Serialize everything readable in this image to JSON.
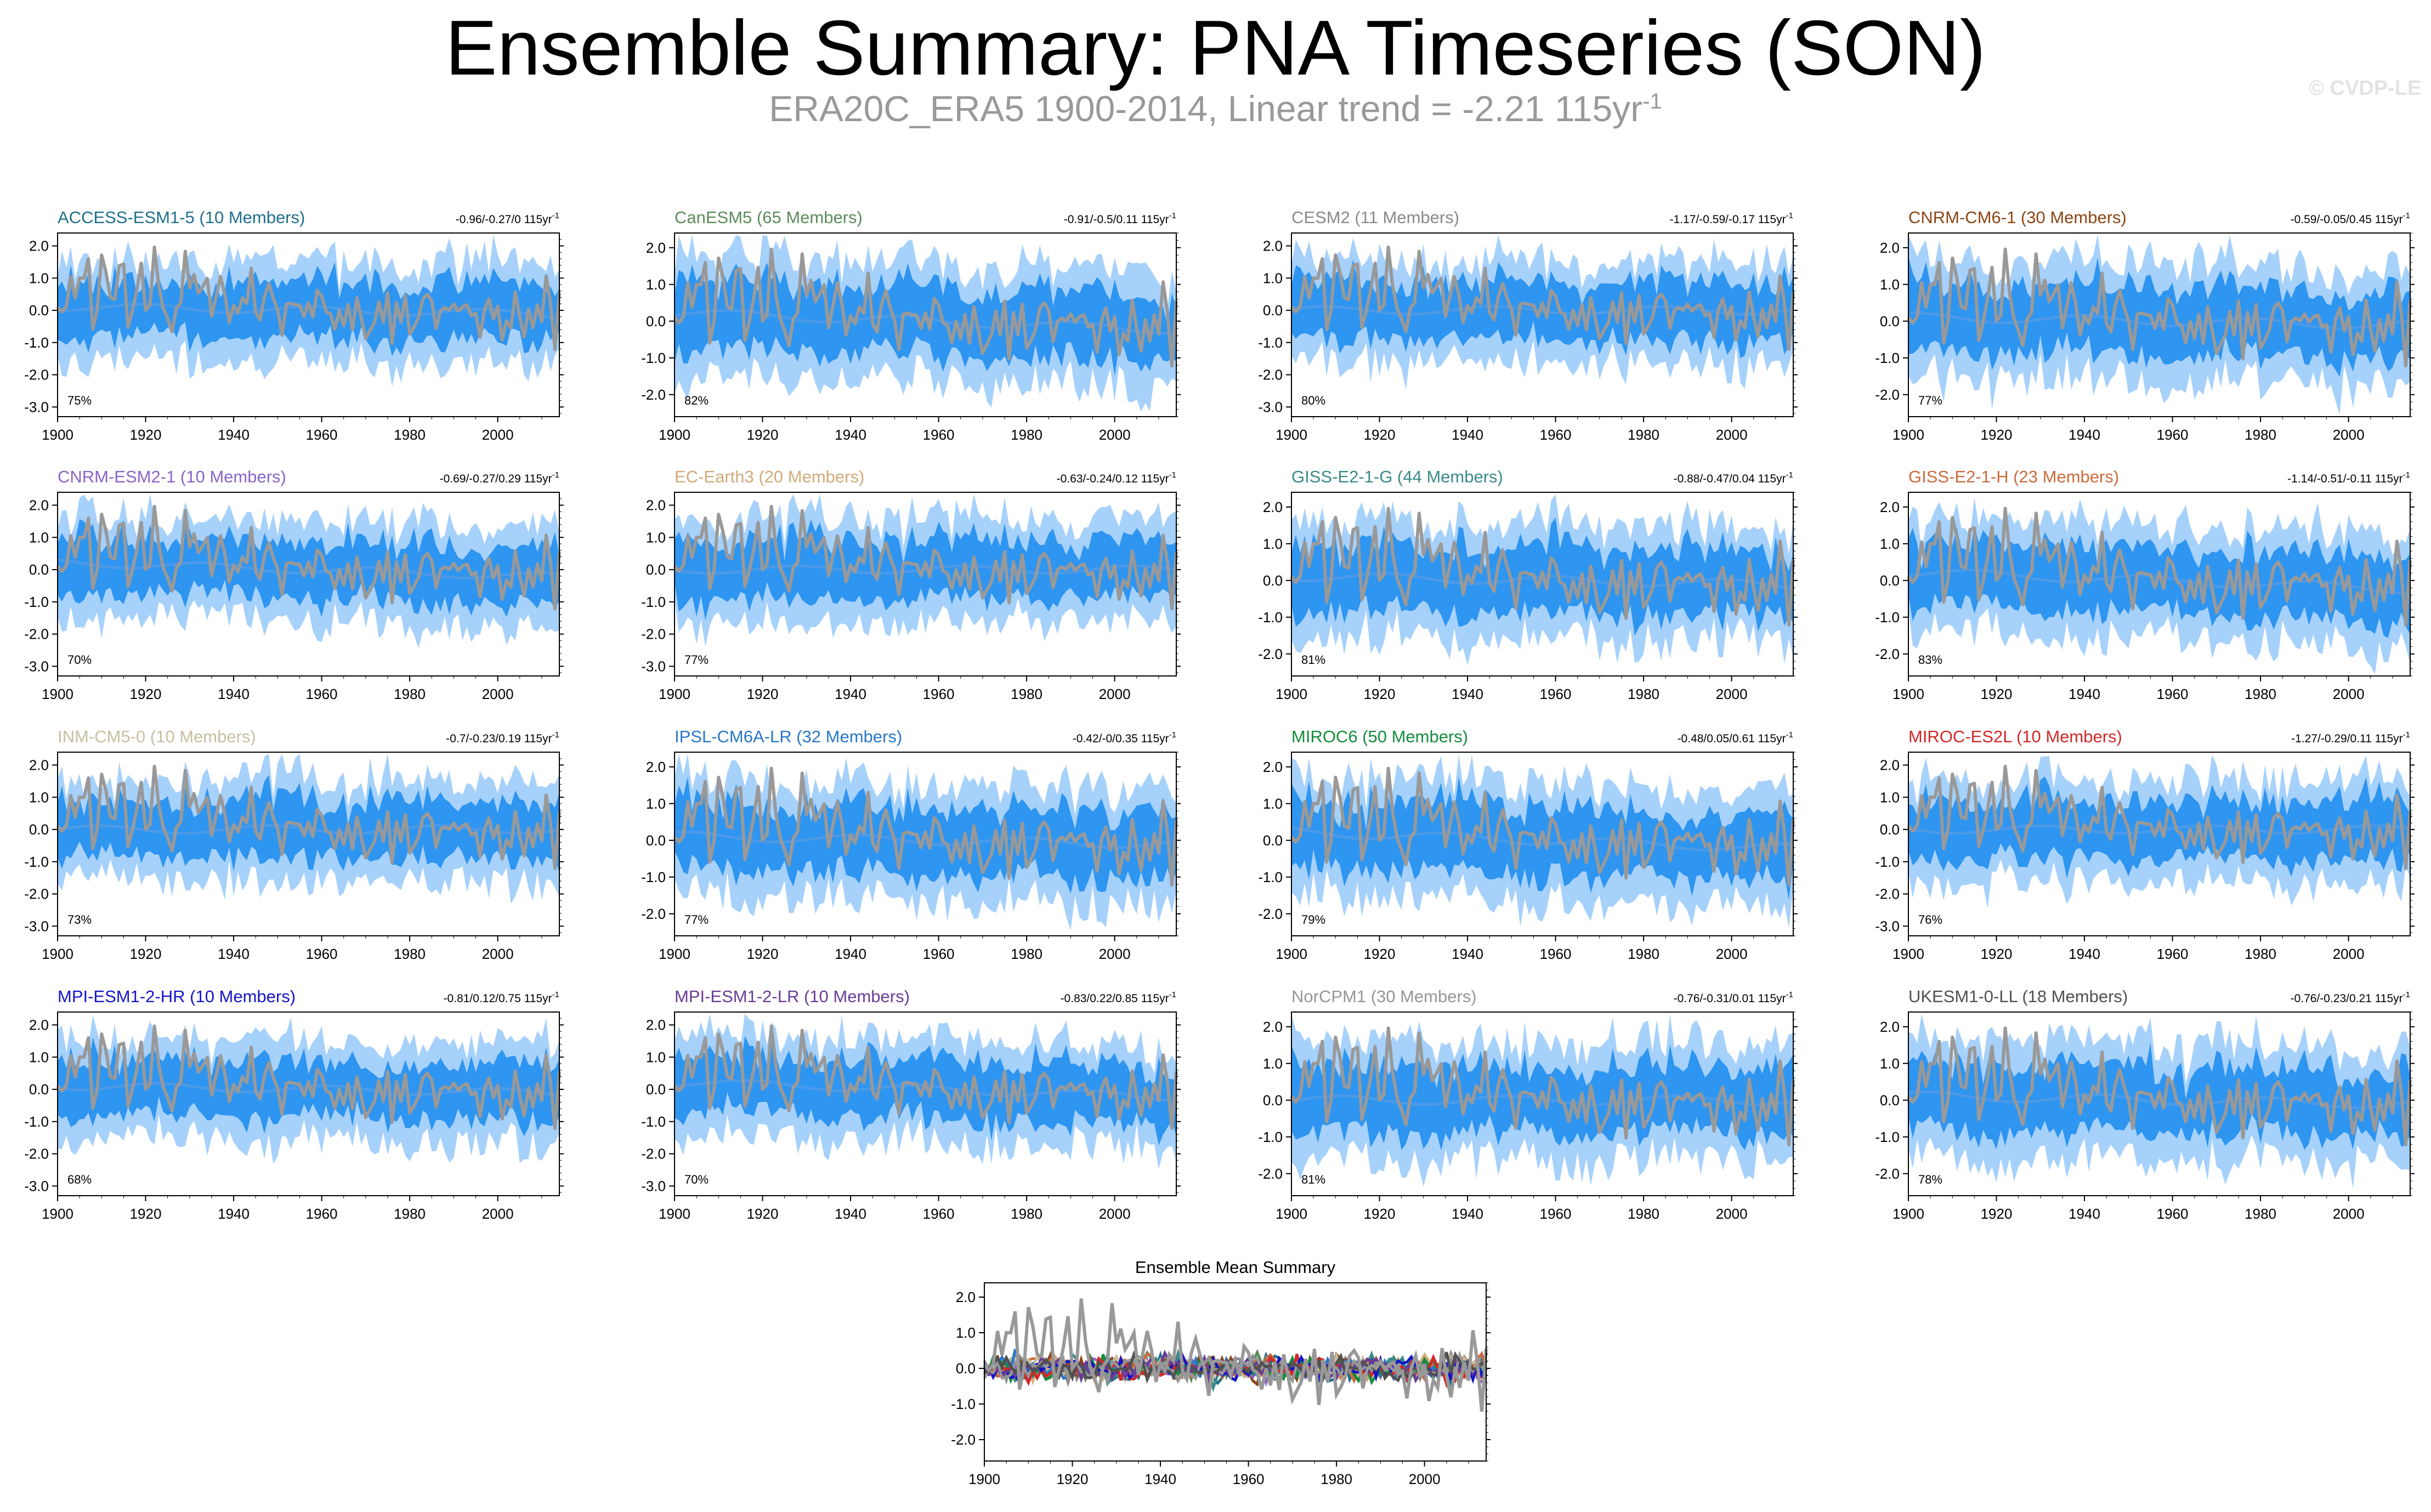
{
  "page": {
    "title": "Ensemble Summary: PNA Timeseries (SON)",
    "subtitle_main": "ERA20C_ERA5 1900-2014, Linear trend = -2.21 115yr",
    "subtitle_sup": "-1",
    "watermark": "© CVDP-LE"
  },
  "colors": {
    "band_outer": "#a6d1fb",
    "band_inner": "#2e95f0",
    "mean_line": "#4b9ae8",
    "obs_line": "#999999",
    "axis": "#000000"
  },
  "chart_data": [
    {
      "type": "line",
      "title": "ACCESS-ESM1-5 (10 Members)",
      "title_color": "#1f6f8b",
      "trend": "-0.96/-0.27/0",
      "trend_unit": "115yr",
      "trend_sup": "-1",
      "percent": "75%",
      "ylim": [
        -3.3,
        2.4
      ],
      "yticks": [
        "2.0",
        "1.0",
        "0.0",
        "-1.0",
        "-2.0",
        "-3.0"
      ],
      "ytick_values": [
        2,
        1,
        0,
        -1,
        -2,
        -3
      ],
      "xlim": [
        1900,
        2014
      ],
      "xticks": [
        "1900",
        "1920",
        "1940",
        "1960",
        "1980",
        "2000"
      ],
      "xtick_values": [
        1900,
        1920,
        1940,
        1960,
        1980,
        2000
      ],
      "seed": 1
    },
    {
      "type": "line",
      "title": "CanESM5 (65 Members)",
      "title_color": "#5b8c5a",
      "trend": "-0.91/-0.5/0.11",
      "trend_unit": "115yr",
      "trend_sup": "-1",
      "percent": "82%",
      "ylim": [
        -2.6,
        2.4
      ],
      "yticks": [
        "2.0",
        "1.0",
        "0.0",
        "-1.0",
        "-2.0"
      ],
      "ytick_values": [
        2,
        1,
        0,
        -1,
        -2
      ],
      "xlim": [
        1900,
        2014
      ],
      "xticks": [
        "1900",
        "1920",
        "1940",
        "1960",
        "1980",
        "2000"
      ],
      "xtick_values": [
        1900,
        1920,
        1940,
        1960,
        1980,
        2000
      ],
      "seed": 2
    },
    {
      "type": "line",
      "title": "CESM2 (11 Members)",
      "title_color": "#8a8a8a",
      "trend": "-1.17/-0.59/-0.17",
      "trend_unit": "115yr",
      "trend_sup": "-1",
      "percent": "80%",
      "ylim": [
        -3.3,
        2.4
      ],
      "yticks": [
        "2.0",
        "1.0",
        "0.0",
        "-1.0",
        "-2.0",
        "-3.0"
      ],
      "ytick_values": [
        2,
        1,
        0,
        -1,
        -2,
        -3
      ],
      "xlim": [
        1900,
        2014
      ],
      "xticks": [
        "1900",
        "1920",
        "1940",
        "1960",
        "1980",
        "2000"
      ],
      "xtick_values": [
        1900,
        1920,
        1940,
        1960,
        1980,
        2000
      ],
      "seed": 3
    },
    {
      "type": "line",
      "title": "CNRM-CM6-1 (30 Members)",
      "title_color": "#8b4513",
      "trend": "-0.59/-0.05/0.45",
      "trend_unit": "115yr",
      "trend_sup": "-1",
      "percent": "77%",
      "ylim": [
        -2.6,
        2.4
      ],
      "yticks": [
        "2.0",
        "1.0",
        "0.0",
        "-1.0",
        "-2.0"
      ],
      "ytick_values": [
        2,
        1,
        0,
        -1,
        -2
      ],
      "xlim": [
        1900,
        2014
      ],
      "xticks": [
        "1900",
        "1920",
        "1940",
        "1960",
        "1980",
        "2000"
      ],
      "xtick_values": [
        1900,
        1920,
        1940,
        1960,
        1980,
        2000
      ],
      "seed": 4
    },
    {
      "type": "line",
      "title": "CNRM-ESM2-1 (10 Members)",
      "title_color": "#8a64c8",
      "trend": "-0.69/-0.27/0.29",
      "trend_unit": "115yr",
      "trend_sup": "-1",
      "percent": "70%",
      "ylim": [
        -3.3,
        2.4
      ],
      "yticks": [
        "2.0",
        "1.0",
        "0.0",
        "-1.0",
        "-2.0",
        "-3.0"
      ],
      "ytick_values": [
        2,
        1,
        0,
        -1,
        -2,
        -3
      ],
      "xlim": [
        1900,
        2014
      ],
      "xticks": [
        "1900",
        "1920",
        "1940",
        "1960",
        "1980",
        "2000"
      ],
      "xtick_values": [
        1900,
        1920,
        1940,
        1960,
        1980,
        2000
      ],
      "seed": 5
    },
    {
      "type": "line",
      "title": "EC-Earth3 (20 Members)",
      "title_color": "#d2aa78",
      "trend": "-0.63/-0.24/0.12",
      "trend_unit": "115yr",
      "trend_sup": "-1",
      "percent": "77%",
      "ylim": [
        -3.3,
        2.4
      ],
      "yticks": [
        "2.0",
        "1.0",
        "0.0",
        "-1.0",
        "-2.0",
        "-3.0"
      ],
      "ytick_values": [
        2,
        1,
        0,
        -1,
        -2,
        -3
      ],
      "xlim": [
        1900,
        2014
      ],
      "xticks": [
        "1900",
        "1920",
        "1940",
        "1960",
        "1980",
        "2000"
      ],
      "xtick_values": [
        1900,
        1920,
        1940,
        1960,
        1980,
        2000
      ],
      "seed": 6
    },
    {
      "type": "line",
      "title": "GISS-E2-1-G (44 Members)",
      "title_color": "#3a8a8a",
      "trend": "-0.88/-0.47/0.04",
      "trend_unit": "115yr",
      "trend_sup": "-1",
      "percent": "81%",
      "ylim": [
        -2.6,
        2.4
      ],
      "yticks": [
        "2.0",
        "1.0",
        "0.0",
        "-1.0",
        "-2.0"
      ],
      "ytick_values": [
        2,
        1,
        0,
        -1,
        -2
      ],
      "xlim": [
        1900,
        2014
      ],
      "xticks": [
        "1900",
        "1920",
        "1940",
        "1960",
        "1980",
        "2000"
      ],
      "xtick_values": [
        1900,
        1920,
        1940,
        1960,
        1980,
        2000
      ],
      "seed": 7
    },
    {
      "type": "line",
      "title": "GISS-E2-1-H (23 Members)",
      "title_color": "#cd6a3c",
      "trend": "-1.14/-0.51/-0.11",
      "trend_unit": "115yr",
      "trend_sup": "-1",
      "percent": "83%",
      "ylim": [
        -2.6,
        2.4
      ],
      "yticks": [
        "2.0",
        "1.0",
        "0.0",
        "-1.0",
        "-2.0"
      ],
      "ytick_values": [
        2,
        1,
        0,
        -1,
        -2
      ],
      "xlim": [
        1900,
        2014
      ],
      "xticks": [
        "1900",
        "1920",
        "1940",
        "1960",
        "1980",
        "2000"
      ],
      "xtick_values": [
        1900,
        1920,
        1940,
        1960,
        1980,
        2000
      ],
      "seed": 8
    },
    {
      "type": "line",
      "title": "INM-CM5-0 (10 Members)",
      "title_color": "#c8bea0",
      "trend": "-0.7/-0.23/0.19",
      "trend_unit": "115yr",
      "trend_sup": "-1",
      "percent": "73%",
      "ylim": [
        -3.3,
        2.4
      ],
      "yticks": [
        "2.0",
        "1.0",
        "0.0",
        "-1.0",
        "-2.0",
        "-3.0"
      ],
      "ytick_values": [
        2,
        1,
        0,
        -1,
        -2,
        -3
      ],
      "xlim": [
        1900,
        2014
      ],
      "xticks": [
        "1900",
        "1920",
        "1940",
        "1960",
        "1980",
        "2000"
      ],
      "xtick_values": [
        1900,
        1920,
        1940,
        1960,
        1980,
        2000
      ],
      "seed": 9
    },
    {
      "type": "line",
      "title": "IPSL-CM6A-LR (32 Members)",
      "title_color": "#2878c8",
      "trend": "-0.42/-0/0.35",
      "trend_unit": "115yr",
      "trend_sup": "-1",
      "percent": "77%",
      "ylim": [
        -2.6,
        2.4
      ],
      "yticks": [
        "2.0",
        "1.0",
        "0.0",
        "-1.0",
        "-2.0"
      ],
      "ytick_values": [
        2,
        1,
        0,
        -1,
        -2
      ],
      "xlim": [
        1900,
        2014
      ],
      "xticks": [
        "1900",
        "1920",
        "1940",
        "1960",
        "1980",
        "2000"
      ],
      "xtick_values": [
        1900,
        1920,
        1940,
        1960,
        1980,
        2000
      ],
      "seed": 10
    },
    {
      "type": "line",
      "title": "MIROC6 (50 Members)",
      "title_color": "#148c3c",
      "trend": "-0.48/0.05/0.61",
      "trend_unit": "115yr",
      "trend_sup": "-1",
      "percent": "79%",
      "ylim": [
        -2.6,
        2.4
      ],
      "yticks": [
        "2.0",
        "1.0",
        "0.0",
        "-1.0",
        "-2.0"
      ],
      "ytick_values": [
        2,
        1,
        0,
        -1,
        -2
      ],
      "xlim": [
        1900,
        2014
      ],
      "xticks": [
        "1900",
        "1920",
        "1940",
        "1960",
        "1980",
        "2000"
      ],
      "xtick_values": [
        1900,
        1920,
        1940,
        1960,
        1980,
        2000
      ],
      "seed": 11
    },
    {
      "type": "line",
      "title": "MIROC-ES2L (10 Members)",
      "title_color": "#d22828",
      "trend": "-1.27/-0.29/0.11",
      "trend_unit": "115yr",
      "trend_sup": "-1",
      "percent": "76%",
      "ylim": [
        -3.3,
        2.4
      ],
      "yticks": [
        "2.0",
        "1.0",
        "0.0",
        "-1.0",
        "-2.0",
        "-3.0"
      ],
      "ytick_values": [
        2,
        1,
        0,
        -1,
        -2,
        -3
      ],
      "xlim": [
        1900,
        2014
      ],
      "xticks": [
        "1900",
        "1920",
        "1940",
        "1960",
        "1980",
        "2000"
      ],
      "xtick_values": [
        1900,
        1920,
        1940,
        1960,
        1980,
        2000
      ],
      "seed": 12
    },
    {
      "type": "line",
      "title": "MPI-ESM1-2-HR (10 Members)",
      "title_color": "#1414c8",
      "trend": "-0.81/0.12/0.75",
      "trend_unit": "115yr",
      "trend_sup": "-1",
      "percent": "68%",
      "ylim": [
        -3.3,
        2.4
      ],
      "yticks": [
        "2.0",
        "1.0",
        "0.0",
        "-1.0",
        "-2.0",
        "-3.0"
      ],
      "ytick_values": [
        2,
        1,
        0,
        -1,
        -2,
        -3
      ],
      "xlim": [
        1900,
        2014
      ],
      "xticks": [
        "1900",
        "1920",
        "1940",
        "1960",
        "1980",
        "2000"
      ],
      "xtick_values": [
        1900,
        1920,
        1940,
        1960,
        1980,
        2000
      ],
      "seed": 13
    },
    {
      "type": "line",
      "title": "MPI-ESM1-2-LR (10 Members)",
      "title_color": "#6a3c96",
      "trend": "-0.83/0.22/0.85",
      "trend_unit": "115yr",
      "trend_sup": "-1",
      "percent": "70%",
      "ylim": [
        -3.3,
        2.4
      ],
      "yticks": [
        "2.0",
        "1.0",
        "0.0",
        "-1.0",
        "-2.0",
        "-3.0"
      ],
      "ytick_values": [
        2,
        1,
        0,
        -1,
        -2,
        -3
      ],
      "xlim": [
        1900,
        2014
      ],
      "xticks": [
        "1900",
        "1920",
        "1940",
        "1960",
        "1980",
        "2000"
      ],
      "xtick_values": [
        1900,
        1920,
        1940,
        1960,
        1980,
        2000
      ],
      "seed": 14
    },
    {
      "type": "line",
      "title": "NorCPM1 (30 Members)",
      "title_color": "#969696",
      "trend": "-0.76/-0.31/0.01",
      "trend_unit": "115yr",
      "trend_sup": "-1",
      "percent": "81%",
      "ylim": [
        -2.6,
        2.4
      ],
      "yticks": [
        "2.0",
        "1.0",
        "0.0",
        "-1.0",
        "-2.0"
      ],
      "ytick_values": [
        2,
        1,
        0,
        -1,
        -2
      ],
      "xlim": [
        1900,
        2014
      ],
      "xticks": [
        "1900",
        "1920",
        "1940",
        "1960",
        "1980",
        "2000"
      ],
      "xtick_values": [
        1900,
        1920,
        1940,
        1960,
        1980,
        2000
      ],
      "seed": 15
    },
    {
      "type": "line",
      "title": "UKESM1-0-LL (18 Members)",
      "title_color": "#505050",
      "trend": "-0.76/-0.23/0.21",
      "trend_unit": "115yr",
      "trend_sup": "-1",
      "percent": "78%",
      "ylim": [
        -2.6,
        2.4
      ],
      "yticks": [
        "2.0",
        "1.0",
        "0.0",
        "-1.0",
        "-2.0"
      ],
      "ytick_values": [
        2,
        1,
        0,
        -1,
        -2
      ],
      "xlim": [
        1900,
        2014
      ],
      "xticks": [
        "1900",
        "1920",
        "1940",
        "1960",
        "1980",
        "2000"
      ],
      "xtick_values": [
        1900,
        1920,
        1940,
        1960,
        1980,
        2000
      ],
      "seed": 16
    },
    {
      "type": "line",
      "title": "Ensemble Mean Summary",
      "title_color": "#000000",
      "summary": true,
      "ylim": [
        -2.6,
        2.4
      ],
      "yticks": [
        "2.0",
        "1.0",
        "0.0",
        "-1.0",
        "-2.0"
      ],
      "ytick_values": [
        2,
        1,
        0,
        -1,
        -2
      ],
      "xlim": [
        1900,
        2014
      ],
      "xticks": [
        "1900",
        "1920",
        "1940",
        "1960",
        "1980",
        "2000"
      ],
      "xtick_values": [
        1900,
        1920,
        1940,
        1960,
        1980,
        2000
      ],
      "series_colors": [
        "#1f6f8b",
        "#5b8c5a",
        "#8a8a8a",
        "#8b4513",
        "#8a64c8",
        "#d2aa78",
        "#3a8a8a",
        "#cd6a3c",
        "#c8bea0",
        "#2878c8",
        "#148c3c",
        "#d22828",
        "#1414c8",
        "#6a3c96",
        "#969696",
        "#505050"
      ],
      "seed": 17
    }
  ]
}
